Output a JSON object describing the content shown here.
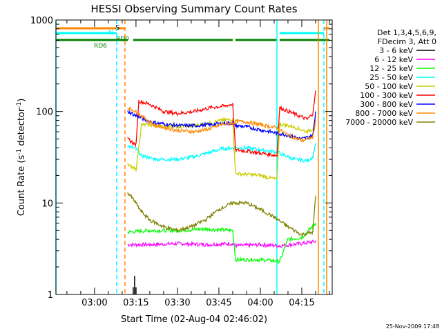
{
  "chart_data": {
    "type": "line",
    "title": "HESSI Observing Summary Count Rates",
    "xlabel": "Start Time (02-Aug-04 02:46:02)",
    "ylabel_main": "Count Rate (s",
    "ylabel_sup1": "-1",
    "ylabel_mid": " detector",
    "ylabel_sup2": "-1",
    "ylabel_end": ")",
    "y_scale": "log",
    "ylim": [
      1,
      1000
    ],
    "xlim": [
      "02:46:02",
      "04:26"
    ],
    "x_ticks": [
      "03:00",
      "03:15",
      "03:30",
      "03:45",
      "04:00",
      "04:15"
    ],
    "y_ticks": [
      "1",
      "10",
      "100",
      "1000"
    ],
    "legend_placement": "right",
    "legend_header": [
      "Det 1,3,4,5,6,9,",
      "FDecim 3, Att 0"
    ],
    "series": [
      {
        "name": "3 - 6 keV",
        "color": "#000000",
        "points": [
          [
            "03:14:00",
            1.2
          ],
          [
            "03:14:30",
            1.6
          ],
          [
            "03:15:00",
            1.2
          ]
        ]
      },
      {
        "name": "6 - 12 keV",
        "color": "#ff00ff",
        "points": [
          [
            "03:12",
            3.5
          ],
          [
            "03:20",
            3.5
          ],
          [
            "03:30",
            3.6
          ],
          [
            "03:40",
            3.5
          ],
          [
            "03:50",
            3.6
          ],
          [
            "03:51",
            3.4
          ],
          [
            "04:00",
            3.5
          ],
          [
            "04:07",
            3.4
          ],
          [
            "04:15",
            3.6
          ],
          [
            "04:20",
            3.8
          ]
        ]
      },
      {
        "name": "12 - 25 keV",
        "color": "#00ff00",
        "points": [
          [
            "03:12",
            4.8
          ],
          [
            "03:20",
            5.0
          ],
          [
            "03:30",
            5.0
          ],
          [
            "03:40",
            5.2
          ],
          [
            "03:50",
            5.0
          ],
          [
            "03:51",
            2.4
          ],
          [
            "04:00",
            2.4
          ],
          [
            "04:07",
            2.3
          ],
          [
            "04:10",
            4.0
          ],
          [
            "04:15",
            4.2
          ],
          [
            "04:20",
            6.0
          ]
        ]
      },
      {
        "name": "25 - 50 keV",
        "color": "#00ffff",
        "points": [
          [
            "03:12",
            42
          ],
          [
            "03:15",
            39
          ],
          [
            "03:17",
            33
          ],
          [
            "03:22",
            30
          ],
          [
            "03:30",
            30
          ],
          [
            "03:36",
            32
          ],
          [
            "03:42",
            36
          ],
          [
            "03:46",
            39
          ],
          [
            "03:50",
            40
          ],
          [
            "03:51",
            40
          ],
          [
            "03:55",
            40
          ],
          [
            "04:00",
            38
          ],
          [
            "04:06",
            36
          ],
          [
            "04:08",
            34
          ],
          [
            "04:12",
            30
          ],
          [
            "04:17",
            29
          ],
          [
            "04:19",
            32
          ],
          [
            "04:20",
            45
          ]
        ]
      },
      {
        "name": "50 - 100 keV",
        "color": "#cccc00",
        "points": [
          [
            "03:12",
            26
          ],
          [
            "03:15",
            23
          ],
          [
            "03:17",
            72
          ],
          [
            "03:22",
            70
          ],
          [
            "03:30",
            68
          ],
          [
            "03:36",
            70
          ],
          [
            "03:42",
            75
          ],
          [
            "03:46",
            80
          ],
          [
            "03:50",
            82
          ],
          [
            "03:51",
            21
          ],
          [
            "04:00",
            20
          ],
          [
            "04:06",
            18
          ],
          [
            "04:07",
            73
          ],
          [
            "04:12",
            68
          ],
          [
            "04:17",
            60
          ],
          [
            "04:19",
            65
          ],
          [
            "04:20",
            85
          ]
        ]
      },
      {
        "name": "100 - 300 keV",
        "color": "#ff0000",
        "points": [
          [
            "03:12",
            50
          ],
          [
            "03:15",
            43
          ],
          [
            "03:16",
            130
          ],
          [
            "03:20",
            120
          ],
          [
            "03:25",
            100
          ],
          [
            "03:30",
            95
          ],
          [
            "03:36",
            100
          ],
          [
            "03:42",
            110
          ],
          [
            "03:47",
            115
          ],
          [
            "03:50",
            120
          ],
          [
            "03:51",
            38
          ],
          [
            "03:55",
            37
          ],
          [
            "04:00",
            35
          ],
          [
            "04:06",
            33
          ],
          [
            "04:07",
            110
          ],
          [
            "04:12",
            95
          ],
          [
            "04:17",
            82
          ],
          [
            "04:19",
            95
          ],
          [
            "04:20",
            165
          ]
        ]
      },
      {
        "name": "300 - 800 keV",
        "color": "#0000ff",
        "points": [
          [
            "03:12",
            100
          ],
          [
            "03:15",
            90
          ],
          [
            "03:18",
            82
          ],
          [
            "03:22",
            75
          ],
          [
            "03:30",
            70
          ],
          [
            "03:36",
            70
          ],
          [
            "03:42",
            72
          ],
          [
            "03:46",
            74
          ],
          [
            "03:50",
            75
          ],
          [
            "03:51",
            70
          ],
          [
            "03:55",
            68
          ],
          [
            "04:00",
            63
          ],
          [
            "04:06",
            58
          ],
          [
            "04:10",
            55
          ],
          [
            "04:15",
            50
          ],
          [
            "04:19",
            55
          ],
          [
            "04:20",
            100
          ]
        ]
      },
      {
        "name": "800 - 7000 keV",
        "color": "#ff8800",
        "points": [
          [
            "03:12",
            110
          ],
          [
            "03:15",
            100
          ],
          [
            "03:18",
            85
          ],
          [
            "03:22",
            70
          ],
          [
            "03:30",
            62
          ],
          [
            "03:36",
            60
          ],
          [
            "03:42",
            65
          ],
          [
            "03:46",
            72
          ],
          [
            "03:50",
            75
          ],
          [
            "03:51",
            78
          ],
          [
            "03:55",
            77
          ],
          [
            "04:00",
            72
          ],
          [
            "04:06",
            66
          ],
          [
            "04:10",
            55
          ],
          [
            "04:15",
            48
          ],
          [
            "04:19",
            52
          ],
          [
            "04:20",
            80
          ]
        ]
      },
      {
        "name": "7000 - 20000 keV",
        "color": "#808000",
        "points": [
          [
            "03:12",
            13
          ],
          [
            "03:14",
            11
          ],
          [
            "03:17",
            8
          ],
          [
            "03:20",
            6.5
          ],
          [
            "03:25",
            5.5
          ],
          [
            "03:30",
            5.0
          ],
          [
            "03:35",
            5.5
          ],
          [
            "03:40",
            6.5
          ],
          [
            "03:45",
            8.5
          ],
          [
            "03:50",
            10
          ],
          [
            "03:51",
            10
          ],
          [
            "03:55",
            10
          ],
          [
            "04:00",
            8.5
          ],
          [
            "04:05",
            7.0
          ],
          [
            "04:10",
            5.5
          ],
          [
            "04:15",
            4.5
          ],
          [
            "04:19",
            4.8
          ],
          [
            "04:20",
            12
          ]
        ]
      }
    ],
    "flag_labels": {
      "s": "S",
      "n": "N",
      "rd0": "RD0",
      "rd6": "RD6"
    },
    "flags": [
      {
        "label": "S",
        "color": "#ff8800",
        "segments": [
          [
            "02:46:02",
            "03:11"
          ],
          [
            "04:23",
            "04:25"
          ]
        ]
      },
      {
        "label": "N",
        "color": "#00ffff",
        "segments": [
          [
            "02:46:02",
            "03:08"
          ],
          [
            "04:07",
            "04:23"
          ]
        ]
      },
      {
        "label": "RD0",
        "color": "#008000",
        "segments": [
          [
            "03:14",
            "03:50"
          ],
          [
            "03:51",
            "04:06"
          ],
          [
            "04:07",
            "04:25"
          ]
        ]
      },
      {
        "label": "RD6",
        "color": "#008000",
        "segments": [
          [
            "02:46:02",
            "03:12"
          ]
        ]
      }
    ],
    "vlines": [
      {
        "time": "02:46:02",
        "color": "#00ffff",
        "style": "solid"
      },
      {
        "time": "03:08",
        "color": "#00ffff",
        "style": "dashed"
      },
      {
        "time": "03:11",
        "color": "#ff8800",
        "style": "dashed"
      },
      {
        "time": "04:06",
        "color": "#00ffff",
        "style": "solid"
      },
      {
        "time": "04:21",
        "color": "#ff8800",
        "style": "solid"
      },
      {
        "time": "04:23",
        "color": "#00ffff",
        "style": "dashed"
      },
      {
        "time": "04:24",
        "color": "#ff8800",
        "style": "solid"
      }
    ],
    "footer_date": "25-Nov-2009 17:48"
  }
}
